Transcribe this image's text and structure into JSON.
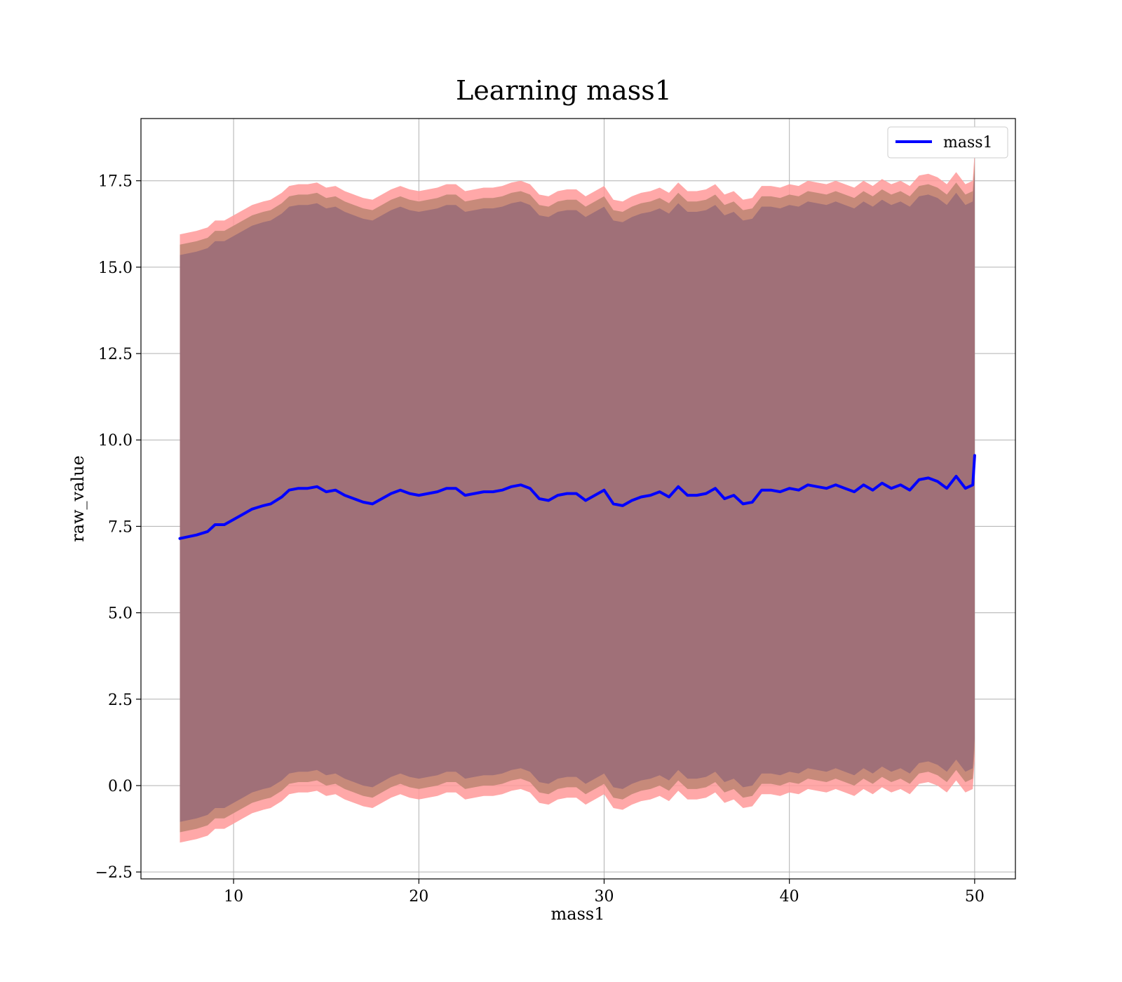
{
  "chart_data": {
    "type": "line",
    "title": "Learning mass1",
    "xlabel": "mass1",
    "ylabel": "raw_value",
    "xlim": [
      5,
      52.2
    ],
    "ylim": [
      -2.7,
      19.3
    ],
    "xticks": [
      10,
      20,
      30,
      40,
      50
    ],
    "xtick_labels": [
      "10",
      "20",
      "30",
      "40",
      "50"
    ],
    "yticks": [
      -2.5,
      0.0,
      2.5,
      5.0,
      7.5,
      10.0,
      12.5,
      15.0,
      17.5
    ],
    "ytick_labels": [
      "−2.5",
      "0.0",
      "2.5",
      "5.0",
      "7.5",
      "10.0",
      "12.5",
      "15.0",
      "17.5"
    ],
    "grid": true,
    "legend": {
      "position": "top-right"
    },
    "colors": {
      "line": "#0000ff",
      "band_outer": "#ff9999",
      "band_middle": "#c78a7a",
      "band_inner": "#a07078",
      "grid": "#b0b0b0"
    },
    "series": [
      {
        "name": "mass1",
        "x": [
          7.1,
          8.0,
          8.6,
          9.0,
          9.5,
          10.0,
          10.5,
          11.0,
          11.6,
          12.0,
          12.6,
          13.0,
          13.5,
          14.0,
          14.5,
          15.0,
          15.5,
          16.0,
          16.5,
          17.0,
          17.5,
          18.0,
          18.5,
          19.0,
          19.5,
          20.0,
          20.5,
          21.0,
          21.5,
          22.0,
          22.5,
          23.0,
          23.5,
          24.0,
          24.5,
          25.0,
          25.5,
          26.0,
          26.5,
          27.0,
          27.5,
          28.0,
          28.5,
          29.0,
          29.5,
          30.0,
          30.5,
          31.0,
          31.5,
          32.0,
          32.5,
          33.0,
          33.5,
          34.0,
          34.5,
          35.0,
          35.5,
          36.0,
          36.5,
          37.0,
          37.5,
          38.0,
          38.5,
          39.0,
          39.5,
          40.0,
          40.5,
          41.0,
          41.5,
          42.0,
          42.5,
          43.0,
          43.5,
          44.0,
          44.5,
          45.0,
          45.5,
          46.0,
          46.5,
          47.0,
          47.5,
          48.0,
          48.5,
          49.0,
          49.5,
          49.9,
          50.0
        ],
        "values": [
          7.15,
          7.25,
          7.35,
          7.55,
          7.55,
          7.7,
          7.85,
          8.0,
          8.1,
          8.15,
          8.35,
          8.55,
          8.6,
          8.6,
          8.65,
          8.5,
          8.55,
          8.4,
          8.3,
          8.2,
          8.15,
          8.3,
          8.45,
          8.55,
          8.45,
          8.4,
          8.45,
          8.5,
          8.6,
          8.6,
          8.4,
          8.45,
          8.5,
          8.5,
          8.55,
          8.65,
          8.7,
          8.6,
          8.3,
          8.25,
          8.4,
          8.45,
          8.45,
          8.25,
          8.4,
          8.55,
          8.15,
          8.1,
          8.25,
          8.35,
          8.4,
          8.5,
          8.35,
          8.65,
          8.4,
          8.4,
          8.45,
          8.6,
          8.3,
          8.4,
          8.15,
          8.2,
          8.55,
          8.55,
          8.5,
          8.6,
          8.55,
          8.7,
          8.65,
          8.6,
          8.7,
          8.6,
          8.5,
          8.7,
          8.55,
          8.75,
          8.6,
          8.7,
          8.55,
          8.85,
          8.9,
          8.8,
          8.6,
          8.95,
          8.6,
          8.7,
          9.55
        ],
        "band_outer_halfwidth": 8.8,
        "band_middle_halfwidth": 8.5,
        "band_inner_halfwidth": 8.2
      }
    ]
  }
}
